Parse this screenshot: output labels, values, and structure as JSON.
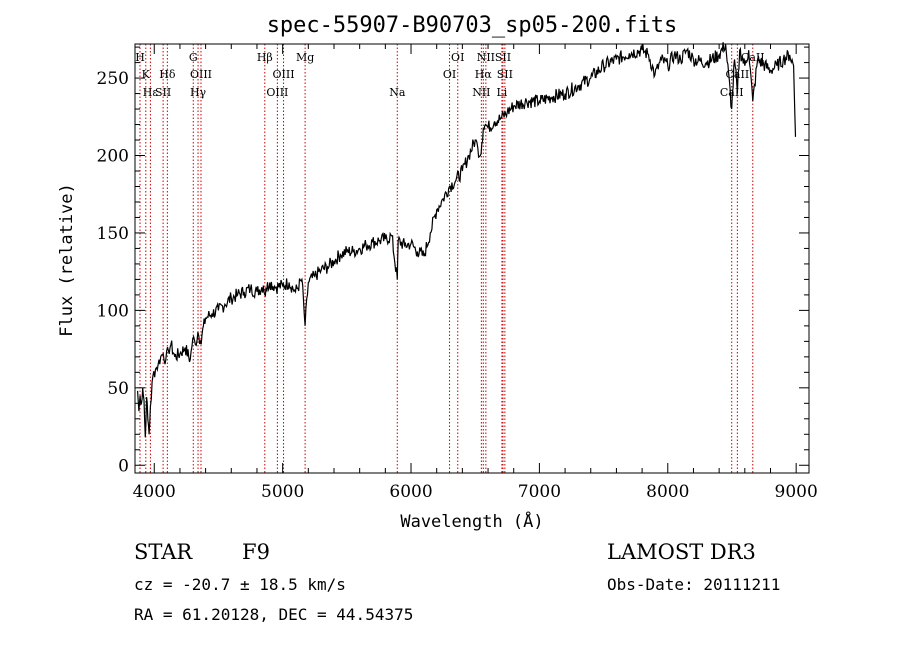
{
  "chart_data": {
    "type": "line",
    "title": "spec-55907-B90703_sp05-200.fits",
    "xlabel": "Wavelength (Å)",
    "ylabel": "Flux (relative)",
    "xlim": [
      3850,
      9100
    ],
    "ylim": [
      -5,
      272
    ],
    "xticks": [
      4000,
      5000,
      6000,
      7000,
      8000,
      9000
    ],
    "yticks": [
      0,
      50,
      100,
      150,
      200,
      250
    ],
    "grid": false,
    "line_color": "#000000",
    "marker_color": "#cc0000",
    "series": [
      {
        "x": [
          3870,
          3880,
          3890,
          3900,
          3910,
          3920,
          3930,
          3940,
          3950,
          3960,
          3970,
          3990,
          4010,
          4030,
          4050,
          4070,
          4090,
          4110,
          4130,
          4160,
          4200,
          4240,
          4280,
          4300,
          4320,
          4340,
          4360,
          4400,
          4450,
          4500,
          4550,
          4600,
          4650,
          4700,
          4750,
          4800,
          4850,
          4861,
          4870,
          4900,
          4950,
          5000,
          5050,
          5100,
          5150,
          5175,
          5200,
          5250,
          5300,
          5350,
          5400,
          5450,
          5500,
          5550,
          5600,
          5650,
          5700,
          5750,
          5800,
          5850,
          5893,
          5900,
          5950,
          6000,
          6050,
          6100,
          6150,
          6200,
          6250,
          6300,
          6350,
          6400,
          6450,
          6500,
          6520,
          6540,
          6563,
          6580,
          6600,
          6650,
          6700,
          6750,
          6800,
          6900,
          7000,
          7100,
          7200,
          7300,
          7400,
          7500,
          7600,
          7700,
          7800,
          7850,
          7900,
          7950,
          8000,
          8050,
          8100,
          8150,
          8200,
          8300,
          8400,
          8450,
          8498,
          8520,
          8542,
          8560,
          8600,
          8630,
          8662,
          8700,
          8800,
          8850,
          8900,
          8950,
          8980,
          8995
        ],
        "y": [
          48,
          35,
          45,
          40,
          50,
          42,
          18,
          44,
          30,
          20,
          38,
          58,
          62,
          65,
          70,
          72,
          68,
          74,
          78,
          70,
          72,
          76,
          68,
          82,
          78,
          86,
          80,
          95,
          98,
          100,
          104,
          108,
          110,
          112,
          114,
          112,
          116,
          110,
          114,
          118,
          115,
          116,
          118,
          112,
          120,
          90,
          118,
          122,
          126,
          128,
          132,
          136,
          138,
          138,
          140,
          142,
          144,
          145,
          146,
          148,
          120,
          145,
          142,
          143,
          138,
          135,
          150,
          165,
          172,
          180,
          184,
          190,
          200,
          210,
          205,
          200,
          218,
          220,
          218,
          222,
          224,
          228,
          232,
          235,
          235,
          238,
          240,
          245,
          250,
          258,
          262,
          266,
          268,
          265,
          252,
          262,
          258,
          265,
          262,
          268,
          262,
          260,
          265,
          272,
          230,
          262,
          240,
          268,
          258,
          268,
          235,
          262,
          255,
          258,
          262,
          265,
          258,
          212
        ]
      }
    ],
    "line_markers": [
      {
        "label": "H",
        "x": 3889,
        "row": 0
      },
      {
        "label": "K",
        "x": 3934,
        "row": 1
      },
      {
        "label": "Hε",
        "x": 3970,
        "row": 2
      },
      {
        "label": "SII",
        "x": 4069,
        "row": 2
      },
      {
        "label": "Hδ",
        "x": 4102,
        "row": 1
      },
      {
        "label": "G",
        "x": 4304,
        "row": 0
      },
      {
        "label": "OIII",
        "x": 4364,
        "row": 1
      },
      {
        "label": "Hγ",
        "x": 4341,
        "row": 2
      },
      {
        "label": "Hβ",
        "x": 4861,
        "row": 0
      },
      {
        "label": "OIII",
        "x": 4959,
        "row": 2
      },
      {
        "label": "OIII",
        "x": 5007,
        "row": 1
      },
      {
        "label": "Mg",
        "x": 5175,
        "row": 0
      },
      {
        "label": "Na",
        "x": 5893,
        "row": 2
      },
      {
        "label": "OI",
        "x": 6300,
        "row": 1
      },
      {
        "label": "OI",
        "x": 6364,
        "row": 0
      },
      {
        "label": "NII",
        "x": 6548,
        "row": 2
      },
      {
        "label": "NII",
        "x": 6583,
        "row": 0
      },
      {
        "label": "Hα",
        "x": 6563,
        "row": 1
      },
      {
        "label": "SII",
        "x": 6716,
        "row": 0
      },
      {
        "label": "SII",
        "x": 6731,
        "row": 1
      },
      {
        "label": "Li",
        "x": 6708,
        "row": 2
      },
      {
        "label": "CaII",
        "x": 8498,
        "row": 2
      },
      {
        "label": "CaII",
        "x": 8542,
        "row": 1
      },
      {
        "label": "CaII",
        "x": 8662,
        "row": 0
      }
    ]
  },
  "footer": {
    "object_class": "STAR",
    "subclass": "F9",
    "survey": "LAMOST DR3",
    "cz": "cz = -20.7 ± 18.5 km/s",
    "obs_date": "Obs-Date: 20111211",
    "coords": "RA =  61.20128, DEC =  44.54375"
  }
}
